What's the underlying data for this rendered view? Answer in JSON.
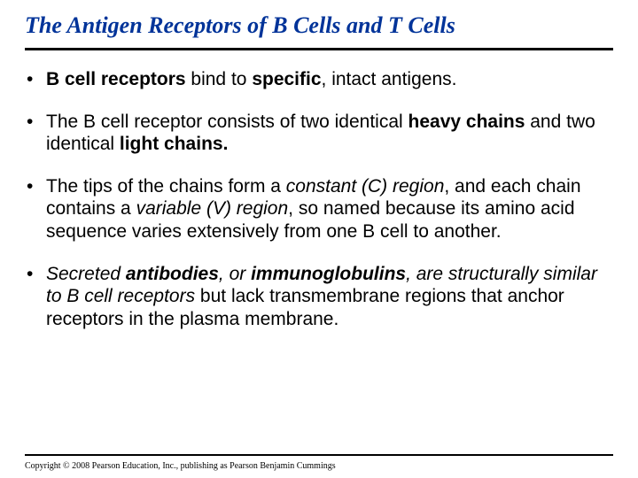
{
  "title": "The Antigen Receptors of B Cells and T Cells",
  "title_color": "#003399",
  "title_fontsize": 26,
  "rule_color": "#000000",
  "body_fontsize": 21,
  "bullets": [
    {
      "runs": [
        {
          "t": "B cell receptors",
          "b": true,
          "i": false
        },
        {
          "t": " bind to ",
          "b": false,
          "i": false
        },
        {
          "t": "specific",
          "b": true,
          "i": false
        },
        {
          "t": ", intact antigens.",
          "b": false,
          "i": false
        }
      ]
    },
    {
      "runs": [
        {
          "t": "The B cell receptor consists of two identical ",
          "b": false,
          "i": false
        },
        {
          "t": "heavy chains",
          "b": true,
          "i": false
        },
        {
          "t": " and two identical ",
          "b": false,
          "i": false
        },
        {
          "t": "light chains.",
          "b": true,
          "i": false
        }
      ]
    },
    {
      "runs": [
        {
          "t": "The tips of the chains form a ",
          "b": false,
          "i": false
        },
        {
          "t": "constant (C) region",
          "b": false,
          "i": true
        },
        {
          "t": ", and each chain contains a ",
          "b": false,
          "i": false
        },
        {
          "t": "variable (V) region",
          "b": false,
          "i": true
        },
        {
          "t": ", so named because its amino acid sequence varies extensively from one B cell to another.",
          "b": false,
          "i": false
        }
      ]
    },
    {
      "runs": [
        {
          "t": "Secreted ",
          "b": false,
          "i": true
        },
        {
          "t": "antibodies",
          "b": true,
          "i": true
        },
        {
          "t": ", or ",
          "b": false,
          "i": true
        },
        {
          "t": "immunoglobulins",
          "b": true,
          "i": true
        },
        {
          "t": ", are structurally similar to B cell receptors",
          "b": false,
          "i": true
        },
        {
          "t": " but lack transmembrane regions that anchor receptors in the plasma membrane.",
          "b": false,
          "i": false
        }
      ]
    }
  ],
  "copyright": "Copyright © 2008 Pearson Education, Inc., publishing as Pearson Benjamin Cummings"
}
